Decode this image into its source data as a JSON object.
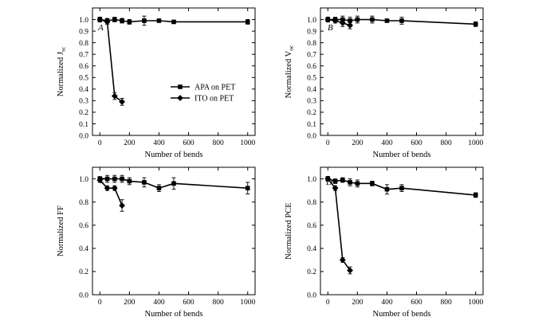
{
  "figure": {
    "legend": [
      "APA on PET",
      "ITO on PET"
    ]
  },
  "chart_data": [
    {
      "type": "line",
      "panel": "A",
      "xlabel": "Number of bends",
      "ylabel_main": "Normalized J",
      "ylabel_sub": "sc",
      "xlim": [
        -50,
        1050
      ],
      "ylim": [
        0,
        1.1
      ],
      "xticks": [
        0,
        200,
        400,
        600,
        800,
        1000
      ],
      "yticks": [
        0.0,
        0.1,
        0.2,
        0.3,
        0.4,
        0.5,
        0.6,
        0.7,
        0.8,
        0.9,
        1.0
      ],
      "legend_position": "center-right",
      "series": [
        {
          "name": "APA on PET",
          "marker": "square",
          "x": [
            0,
            50,
            100,
            150,
            200,
            300,
            400,
            500,
            1000
          ],
          "y": [
            1.0,
            0.99,
            1.0,
            0.99,
            0.98,
            0.99,
            0.99,
            0.98,
            0.98
          ],
          "err": [
            0.02,
            0.02,
            0.02,
            0.02,
            0.02,
            0.04,
            0.01,
            0.01,
            0.02
          ]
        },
        {
          "name": "ITO on PET",
          "marker": "diamond",
          "x": [
            0,
            50,
            100,
            150
          ],
          "y": [
            1.0,
            0.98,
            0.34,
            0.29
          ],
          "err": [
            0.02,
            0.02,
            0.03,
            0.03
          ]
        }
      ]
    },
    {
      "type": "line",
      "panel": "B",
      "xlabel": "Number of bends",
      "ylabel_main": "Normalized V",
      "ylabel_sub": "oc",
      "xlim": [
        -50,
        1050
      ],
      "ylim": [
        0,
        1.1
      ],
      "xticks": [
        0,
        200,
        400,
        600,
        800,
        1000
      ],
      "yticks": [
        0.0,
        0.1,
        0.2,
        0.3,
        0.4,
        0.5,
        0.6,
        0.7,
        0.8,
        0.9,
        1.0
      ],
      "series": [
        {
          "name": "APA on PET",
          "marker": "square",
          "x": [
            0,
            50,
            100,
            150,
            200,
            300,
            400,
            500,
            1000
          ],
          "y": [
            1.0,
            1.0,
            1.0,
            0.99,
            1.0,
            1.0,
            0.99,
            0.99,
            0.96
          ],
          "err": [
            0.02,
            0.02,
            0.03,
            0.03,
            0.03,
            0.03,
            0.01,
            0.03,
            0.02
          ]
        },
        {
          "name": "ITO on PET",
          "marker": "diamond",
          "x": [
            0,
            50,
            100,
            150
          ],
          "y": [
            1.0,
            0.99,
            0.97,
            0.95
          ],
          "err": [
            0.02,
            0.02,
            0.03,
            0.03
          ]
        }
      ]
    },
    {
      "type": "line",
      "panel": "C",
      "xlabel": "Number of bends",
      "ylabel_main": "Normalized FF",
      "ylabel_sub": "",
      "xlim": [
        -50,
        1050
      ],
      "ylim": [
        0,
        1.1
      ],
      "xticks": [
        0,
        200,
        400,
        600,
        800,
        1000
      ],
      "yticks": [
        0.0,
        0.2,
        0.4,
        0.6,
        0.8,
        1.0
      ],
      "series": [
        {
          "name": "APA on PET",
          "marker": "square",
          "x": [
            0,
            50,
            100,
            150,
            200,
            300,
            400,
            500,
            1000
          ],
          "y": [
            1.0,
            1.0,
            1.0,
            1.0,
            0.98,
            0.97,
            0.92,
            0.96,
            0.92
          ],
          "err": [
            0.02,
            0.03,
            0.03,
            0.03,
            0.03,
            0.04,
            0.03,
            0.05,
            0.05
          ]
        },
        {
          "name": "ITO on PET",
          "marker": "diamond",
          "x": [
            0,
            50,
            100,
            150
          ],
          "y": [
            0.99,
            0.92,
            0.92,
            0.77
          ],
          "err": [
            0.02,
            0.02,
            0.02,
            0.05
          ]
        }
      ]
    },
    {
      "type": "line",
      "panel": "D",
      "xlabel": "Number of bends",
      "ylabel_main": "Normalized PCE",
      "ylabel_sub": "",
      "xlim": [
        -50,
        1050
      ],
      "ylim": [
        0,
        1.1
      ],
      "xticks": [
        0,
        200,
        400,
        600,
        800,
        1000
      ],
      "yticks": [
        0.0,
        0.2,
        0.4,
        0.6,
        0.8,
        1.0
      ],
      "series": [
        {
          "name": "APA on PET",
          "marker": "square",
          "x": [
            0,
            50,
            100,
            150,
            200,
            300,
            400,
            500,
            1000
          ],
          "y": [
            1.0,
            0.98,
            0.99,
            0.97,
            0.96,
            0.96,
            0.91,
            0.92,
            0.86
          ],
          "err": [
            0.02,
            0.02,
            0.02,
            0.03,
            0.03,
            0.02,
            0.04,
            0.03,
            0.02
          ]
        },
        {
          "name": "ITO on PET",
          "marker": "diamond",
          "x": [
            0,
            50,
            100,
            150
          ],
          "y": [
            1.0,
            0.92,
            0.3,
            0.21
          ],
          "err": [
            0.02,
            0.02,
            0.02,
            0.03
          ]
        }
      ]
    }
  ]
}
